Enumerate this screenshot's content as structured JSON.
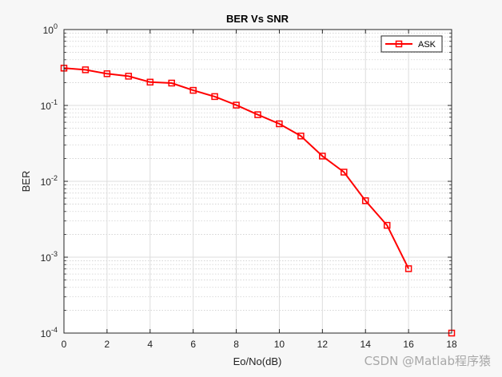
{
  "chart_data": {
    "type": "line",
    "title": "BER Vs SNR",
    "xlabel": "Eo/No(dB)",
    "ylabel": "BER",
    "xlim": [
      0,
      18
    ],
    "ylim": [
      0.0001,
      1
    ],
    "yscale": "log",
    "grid": true,
    "legend_position": "top-right",
    "x_ticks": [
      "0",
      "2",
      "4",
      "6",
      "8",
      "10",
      "12",
      "14",
      "16",
      "18"
    ],
    "y_ticks": [
      {
        "base": "10",
        "exp": "0"
      },
      {
        "base": "10",
        "exp": "-1"
      },
      {
        "base": "10",
        "exp": "-2"
      },
      {
        "base": "10",
        "exp": "-3"
      },
      {
        "base": "10",
        "exp": "-4"
      }
    ],
    "series": [
      {
        "name": "ASK",
        "color": "#ff0000",
        "marker": "square",
        "x": [
          0,
          1,
          2,
          3,
          4,
          5,
          6,
          7,
          8,
          9,
          10,
          11,
          12,
          13,
          14,
          15,
          16,
          18
        ],
        "y": [
          0.31,
          0.295,
          0.262,
          0.243,
          0.203,
          0.197,
          0.158,
          0.131,
          0.101,
          0.0755,
          0.0573,
          0.0395,
          0.0215,
          0.0132,
          0.00555,
          0.00263,
          0.000705,
          0.0001
        ]
      }
    ]
  },
  "watermark": "CSDN @Matlab程序猿"
}
